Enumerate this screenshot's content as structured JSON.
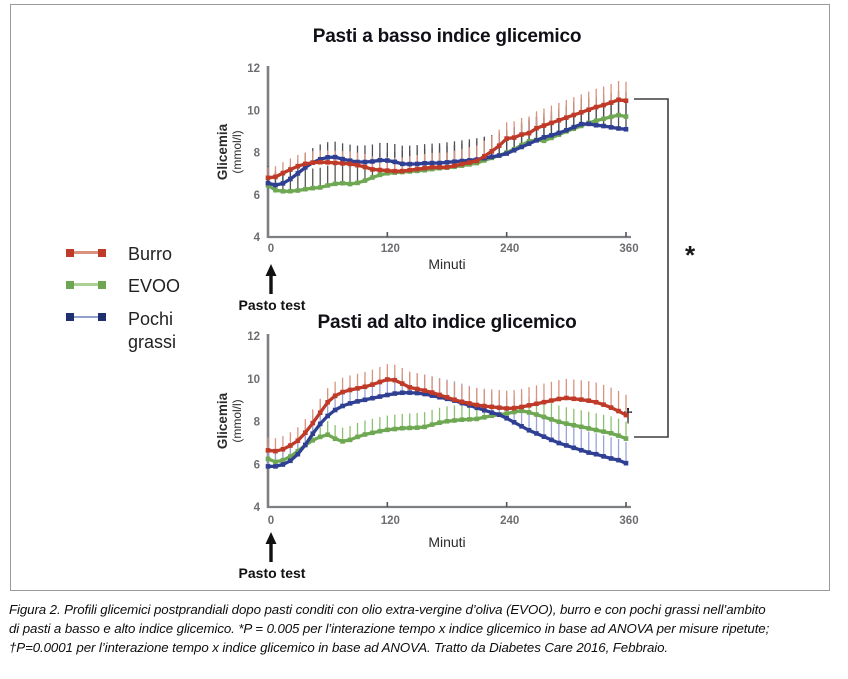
{
  "annotations": {
    "star": "*",
    "dagger": "†",
    "pasto_test": "Pasto test"
  },
  "legend": {
    "items": [
      {
        "label": "Burro",
        "marker": "#bf3a28",
        "line": "#d9927e"
      },
      {
        "label": "EVOO",
        "marker": "#6da651",
        "line": "#abd096"
      },
      {
        "label": "Pochi grassi",
        "marker": "#1e3070",
        "line": "#93a0cc"
      }
    ]
  },
  "caption": {
    "lines": [
      "Figura 2. Profili glicemici postprandiali dopo pasti conditi con olio extra-vergine d’oliva (EVOO), burro e con pochi grassi nell’ambito",
      "di pasti a basso e alto indice glicemico. *P = 0.005 per l’interazione tempo x indice glicemico in base ad ANOVA per misure ripetute;",
      "†P=0.0001 per l’interazione tempo x indice glicemico in base ad ANOVA. Tratto da Diabetes Care 2016, Febbraio."
    ]
  },
  "chart_data": [
    {
      "type": "line",
      "title": "Pasti a basso indice glicemico",
      "xlabel": "Minuti",
      "ylabel_main": "Glicemia",
      "ylabel_unit": "(mmol/l)",
      "xlim": [
        0,
        360
      ],
      "ylim": [
        4,
        12
      ],
      "xticks": [
        0,
        120,
        240,
        360
      ],
      "yticks": [
        4,
        6,
        8,
        10,
        12
      ],
      "marker_every_min": 7.5,
      "series": [
        {
          "name": "EVOO",
          "color": "#6fa853",
          "err_color": "#55584f",
          "err_up": [
            0.9,
            1.15
          ],
          "t": [
            0,
            8,
            18,
            30,
            42,
            54,
            64,
            74,
            84,
            94,
            104,
            116,
            128,
            142,
            156,
            170,
            184,
            198,
            210,
            222,
            232,
            240,
            250,
            260,
            268,
            278,
            288,
            300,
            312,
            325,
            338,
            350,
            356,
            360
          ],
          "y": [
            6.45,
            6.2,
            6.15,
            6.2,
            6.3,
            6.35,
            6.5,
            6.55,
            6.5,
            6.6,
            6.8,
            7.0,
            7.05,
            7.1,
            7.15,
            7.25,
            7.3,
            7.4,
            7.5,
            7.7,
            7.85,
            8.0,
            8.2,
            8.5,
            8.6,
            8.55,
            8.75,
            9.0,
            9.2,
            9.45,
            9.6,
            9.75,
            9.8,
            9.7
          ]
        },
        {
          "name": "Pochi grassi",
          "color": "#2f3f93",
          "err_color": "#4c4e55",
          "err_up": [
            0.6,
            1.3
          ],
          "t": [
            0,
            8,
            16,
            26,
            36,
            46,
            56,
            66,
            78,
            90,
            102,
            114,
            124,
            136,
            148,
            160,
            172,
            184,
            196,
            208,
            220,
            232,
            240,
            252,
            264,
            276,
            288,
            300,
            310,
            318,
            328,
            338,
            350,
            360
          ],
          "y": [
            6.55,
            6.45,
            6.55,
            6.85,
            7.25,
            7.55,
            7.75,
            7.8,
            7.65,
            7.55,
            7.55,
            7.65,
            7.6,
            7.45,
            7.45,
            7.5,
            7.5,
            7.55,
            7.6,
            7.65,
            7.75,
            7.85,
            7.95,
            8.2,
            8.45,
            8.7,
            8.85,
            9.05,
            9.25,
            9.4,
            9.3,
            9.25,
            9.15,
            9.1
          ]
        },
        {
          "name": "Burro",
          "color": "#bf3a28",
          "err_color": "#d9927e",
          "err_up": [
            0.5,
            0.9
          ],
          "t": [
            0,
            8,
            18,
            30,
            40,
            55,
            70,
            85,
            95,
            105,
            118,
            132,
            148,
            165,
            180,
            195,
            210,
            222,
            232,
            242,
            248,
            255,
            262,
            270,
            282,
            294,
            306,
            318,
            330,
            342,
            352,
            360
          ],
          "y": [
            6.8,
            6.85,
            7.1,
            7.35,
            7.5,
            7.55,
            7.5,
            7.45,
            7.35,
            7.2,
            7.15,
            7.1,
            7.2,
            7.3,
            7.3,
            7.45,
            7.6,
            7.95,
            8.3,
            8.75,
            8.7,
            8.85,
            8.9,
            9.15,
            9.35,
            9.55,
            9.75,
            9.95,
            10.15,
            10.3,
            10.5,
            10.45
          ]
        }
      ]
    },
    {
      "type": "line",
      "title": "Pasti ad alto indice glicemico",
      "xlabel": "Minuti",
      "ylabel_main": "Glicemia",
      "ylabel_unit": "(mmol/l)",
      "xlim": [
        0,
        360
      ],
      "ylim": [
        4,
        12
      ],
      "xticks": [
        0,
        120,
        240,
        360
      ],
      "yticks": [
        4,
        6,
        8,
        10,
        12
      ],
      "marker_every_min": 7.5,
      "series": [
        {
          "name": "EVOO",
          "color": "#6fa853",
          "err_color": "#8cc06f",
          "err_up": [
            0.6,
            0.8
          ],
          "t": [
            0,
            8,
            16,
            26,
            36,
            46,
            56,
            62,
            70,
            78,
            88,
            98,
            108,
            118,
            128,
            138,
            148,
            158,
            168,
            178,
            188,
            198,
            208,
            218,
            228,
            238,
            248,
            255,
            265,
            275,
            285,
            295,
            305,
            315,
            325,
            335,
            345,
            355,
            360
          ],
          "y": [
            6.25,
            6.1,
            6.2,
            6.45,
            6.85,
            7.15,
            7.35,
            7.4,
            7.1,
            7.05,
            7.25,
            7.4,
            7.5,
            7.6,
            7.65,
            7.7,
            7.7,
            7.75,
            7.9,
            8.0,
            8.05,
            8.1,
            8.1,
            8.2,
            8.3,
            8.35,
            8.45,
            8.5,
            8.4,
            8.25,
            8.1,
            7.95,
            7.85,
            7.75,
            7.65,
            7.55,
            7.45,
            7.3,
            7.2
          ]
        },
        {
          "name": "Pochi grassi",
          "color": "#2f3f93",
          "err_color": "#9aa4d6",
          "err_up": [
            0.8,
            1.0
          ],
          "t": [
            0,
            8,
            16,
            26,
            36,
            46,
            56,
            66,
            76,
            86,
            96,
            106,
            116,
            126,
            136,
            146,
            156,
            166,
            176,
            186,
            196,
            206,
            216,
            226,
            234,
            242,
            252,
            262,
            272,
            282,
            292,
            302,
            312,
            322,
            332,
            342,
            352,
            360
          ],
          "y": [
            5.9,
            5.9,
            6.0,
            6.25,
            6.8,
            7.5,
            8.1,
            8.5,
            8.75,
            8.9,
            9.0,
            9.1,
            9.2,
            9.3,
            9.35,
            9.35,
            9.3,
            9.2,
            9.1,
            9.0,
            8.85,
            8.7,
            8.55,
            8.4,
            8.3,
            8.1,
            7.85,
            7.6,
            7.4,
            7.2,
            7.0,
            6.85,
            6.7,
            6.55,
            6.45,
            6.3,
            6.2,
            6.05
          ]
        },
        {
          "name": "Burro",
          "color": "#bf3a28",
          "err_color": "#d9927e",
          "err_up": [
            0.6,
            0.95
          ],
          "t": [
            0,
            10,
            20,
            30,
            40,
            50,
            60,
            70,
            80,
            90,
            100,
            110,
            118,
            124,
            132,
            142,
            152,
            162,
            172,
            182,
            192,
            202,
            212,
            222,
            232,
            242,
            252,
            262,
            272,
            282,
            292,
            300,
            310,
            320,
            330,
            340,
            350,
            360
          ],
          "y": [
            6.65,
            6.6,
            6.8,
            7.1,
            7.6,
            8.25,
            8.9,
            9.3,
            9.45,
            9.55,
            9.65,
            9.8,
            9.95,
            10.0,
            9.85,
            9.6,
            9.5,
            9.4,
            9.25,
            9.1,
            8.95,
            8.85,
            8.75,
            8.7,
            8.65,
            8.6,
            8.65,
            8.75,
            8.85,
            8.95,
            9.05,
            9.1,
            9.05,
            9.0,
            8.9,
            8.75,
            8.55,
            8.3
          ]
        }
      ]
    }
  ]
}
